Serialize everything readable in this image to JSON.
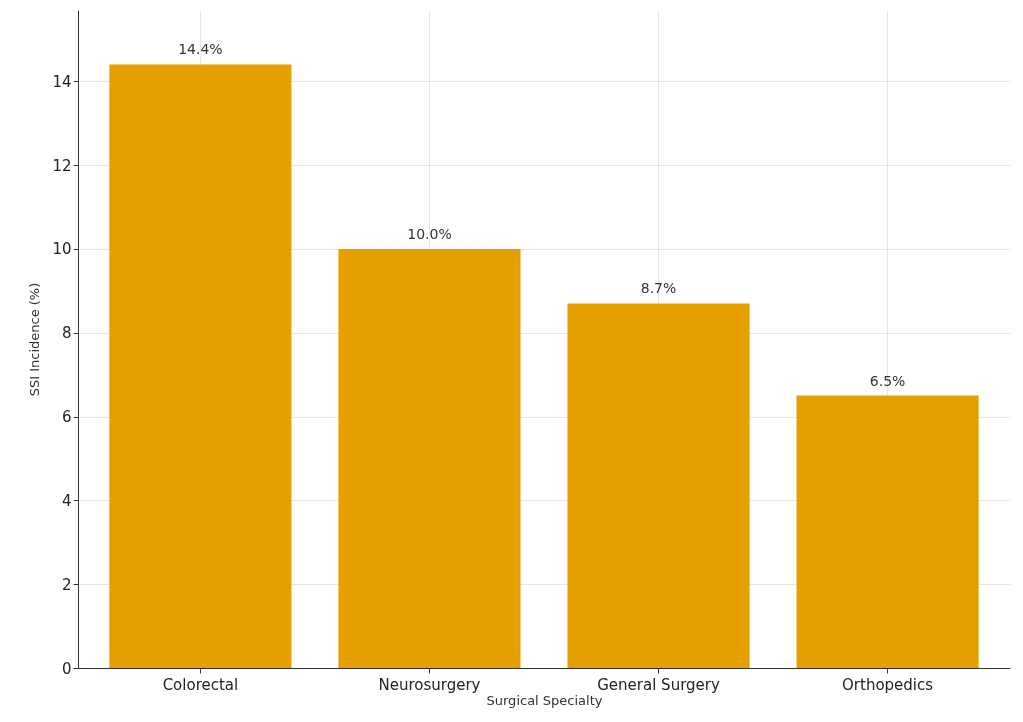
{
  "chart_data": {
    "type": "bar",
    "xlabel": "Surgical Specialty",
    "ylabel": "SSI Incidence (%)",
    "categories": [
      "Colorectal",
      "Neurosurgery",
      "General Surgery",
      "Orthopedics"
    ],
    "values": [
      14.4,
      10.0,
      8.7,
      6.5
    ],
    "value_labels": [
      "14.4%",
      "10.0%",
      "8.7%",
      "6.5%"
    ],
    "color": "#e5a000",
    "ylim": [
      0,
      15.7
    ],
    "yticks": [
      0,
      2,
      4,
      6,
      8,
      10,
      12,
      14
    ],
    "grid": true
  }
}
